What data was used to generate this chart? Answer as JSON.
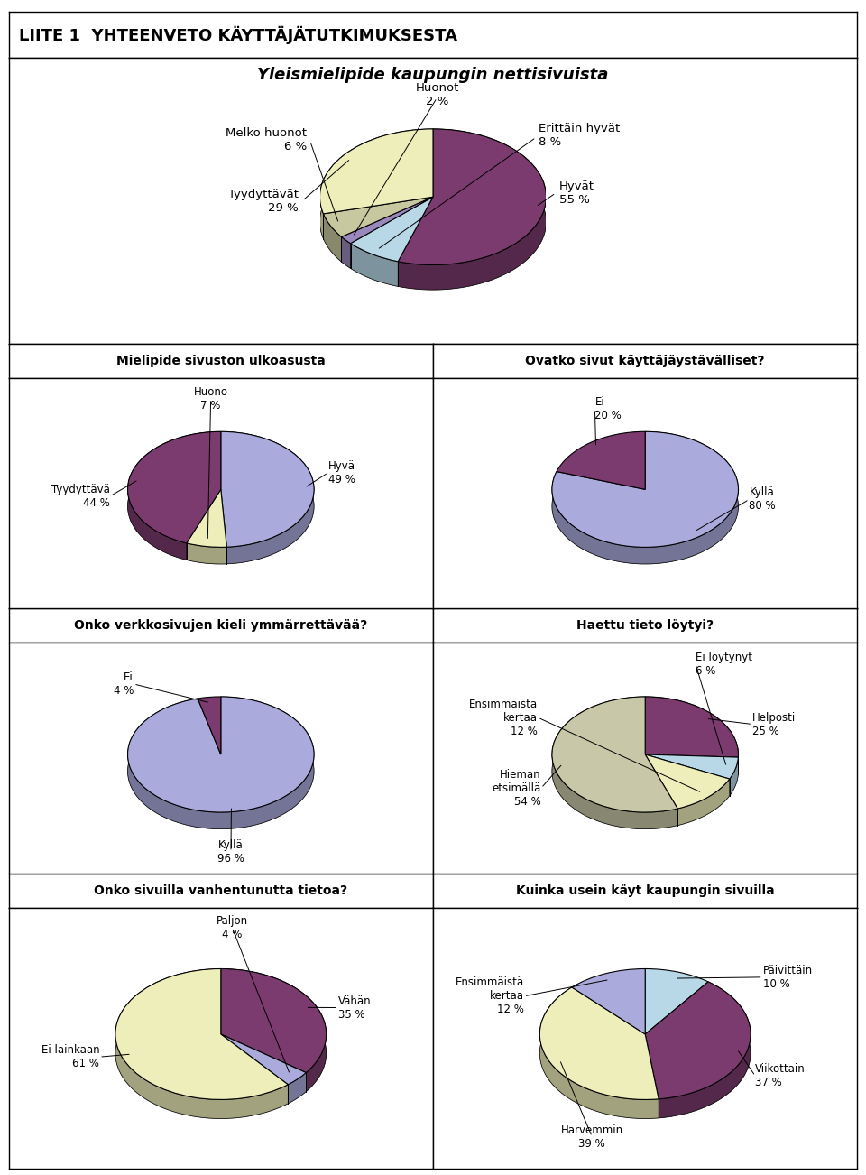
{
  "title_header": "LIITE 1  YHTEENVETO KÄYTTÄJÄTUTKIMUKSESTA",
  "chart1": {
    "title": "Yleismielipide kaupungin nettisivuista",
    "labels": [
      "Hyvät",
      "Erittäin hyvät",
      "Huonot",
      "Melko huonot",
      "Tyydyttävät"
    ],
    "values": [
      55,
      8,
      2,
      6,
      29
    ],
    "colors": [
      "#7B3B6E",
      "#B8D8E8",
      "#9988BB",
      "#C8C8A0",
      "#EEEEBB"
    ],
    "startangle": 90,
    "label_positions": [
      [
        1.55,
        0.05,
        "Hyvät\n55 %",
        "left"
      ],
      [
        1.3,
        0.75,
        "Erittäin hyvät\n8 %",
        "left"
      ],
      [
        0.05,
        1.25,
        "Huonot\n2 %",
        "center"
      ],
      [
        -1.55,
        0.7,
        "Melko huonot\n6 %",
        "right"
      ],
      [
        -1.65,
        -0.05,
        "Tyydyttävät\n29 %",
        "right"
      ]
    ]
  },
  "chart2": {
    "title": "Mielipide sivuston ulkoasusta",
    "labels": [
      "Hyvä",
      "Huono",
      "Tyydyttävä"
    ],
    "values": [
      49,
      7,
      44
    ],
    "colors": [
      "#AAAADD",
      "#EEEEBB",
      "#7B3B6E"
    ],
    "startangle": 90,
    "label_positions": [
      [
        1.6,
        0.25,
        "Hyvä\n49 %",
        "left"
      ],
      [
        -0.15,
        1.35,
        "Huono\n7 %",
        "center"
      ],
      [
        -1.65,
        -0.1,
        "Tyydyttävä\n44 %",
        "right"
      ]
    ]
  },
  "chart3": {
    "title": "Ovatko sivut käyttäjäystävälliset?",
    "labels": [
      "Kyllä",
      "Ei"
    ],
    "values": [
      80,
      20
    ],
    "colors": [
      "#AAAADD",
      "#7B3B6E"
    ],
    "startangle": 90,
    "label_positions": [
      [
        1.55,
        -0.15,
        "Kyllä\n80 %",
        "left"
      ],
      [
        -0.75,
        1.2,
        "Ei\n20 %",
        "left"
      ]
    ]
  },
  "chart4": {
    "title": "Onko verkkosivujen kieli ymmärrettävää?",
    "labels": [
      "Kyllä",
      "Ei"
    ],
    "values": [
      96,
      4
    ],
    "colors": [
      "#AAAADD",
      "#7B3B6E"
    ],
    "startangle": 90,
    "label_positions": [
      [
        0.15,
        -1.45,
        "Kyllä\n96 %",
        "center"
      ],
      [
        -1.3,
        1.05,
        "Ei\n4 %",
        "right"
      ]
    ]
  },
  "chart5": {
    "title": "Haettu tieto löytyi?",
    "labels": [
      "Helposti",
      "Ei löytynyt",
      "Ensimmäistä\nkertaa",
      "Hieman\netsimällä"
    ],
    "values": [
      25,
      6,
      12,
      54
    ],
    "colors": [
      "#7B3B6E",
      "#B8D8E8",
      "#EEEEBB",
      "#C8C8A8"
    ],
    "startangle": 90,
    "label_positions": [
      [
        1.6,
        0.45,
        "Helposti\n25 %",
        "left"
      ],
      [
        0.75,
        1.35,
        "Ei löytynyt\n6 %",
        "left"
      ],
      [
        -1.6,
        0.55,
        "Ensimmäistä\nkertaa\n12 %",
        "right"
      ],
      [
        -1.55,
        -0.5,
        "Hieman\netsimällä\n54 %",
        "right"
      ]
    ]
  },
  "chart6": {
    "title": "Onko sivuilla vanhentunutta tietoa?",
    "labels": [
      "Vähän",
      "Paljon",
      "Ei lainkaan"
    ],
    "values": [
      35,
      4,
      61
    ],
    "colors": [
      "#7B3B6E",
      "#AAAADD",
      "#EEEEBB"
    ],
    "startangle": 90,
    "label_positions": [
      [
        1.55,
        0.35,
        "Vähän\n35 %",
        "left"
      ],
      [
        0.15,
        1.4,
        "Paljon\n4 %",
        "center"
      ],
      [
        -1.6,
        -0.3,
        "Ei lainkaan\n61 %",
        "right"
      ]
    ]
  },
  "chart7": {
    "title": "Kuinka usein käyt kaupungin sivuilla",
    "labels": [
      "Päivittäin",
      "Viikottain",
      "Harvemmin",
      "Ensimmäistä\nkertaa"
    ],
    "values": [
      10,
      37,
      39,
      12
    ],
    "colors": [
      "#B8D8E8",
      "#7B3B6E",
      "#EEEEBB",
      "#AAAADD"
    ],
    "startangle": 90,
    "label_positions": [
      [
        1.55,
        0.75,
        "Päivittäin\n10 %",
        "left"
      ],
      [
        1.45,
        -0.55,
        "Viikottain\n37 %",
        "left"
      ],
      [
        -0.7,
        -1.35,
        "Harvemmin\n39 %",
        "center"
      ],
      [
        -1.6,
        0.5,
        "Ensimmäistä\nkertaa\n12 %",
        "right"
      ]
    ]
  }
}
